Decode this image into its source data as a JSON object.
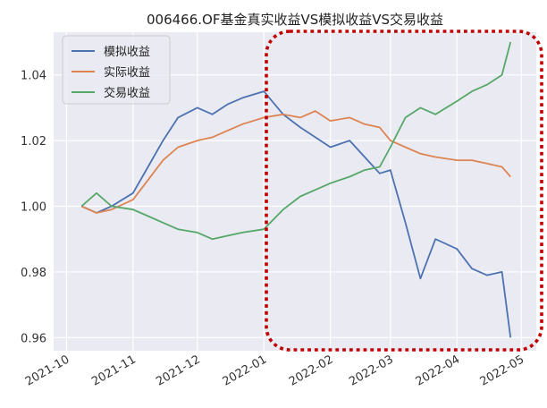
{
  "chart_data": {
    "type": "line",
    "title": "006466.OF基金真实收益VS模拟收益VS交易收益",
    "xlabel": "",
    "ylabel": "",
    "ylim": [
      0.956,
      1.053
    ],
    "y_ticks": [
      "0.96",
      "0.98",
      "1.00",
      "1.02",
      "1.04"
    ],
    "x_ticks": [
      "2021-10",
      "2021-11",
      "2021-12",
      "2022-01",
      "2022-02",
      "2022-03",
      "2022-04",
      "2022-05"
    ],
    "grid": true,
    "legend_position": "top-left",
    "annotation": "red dotted rounded rectangle highlighting 2022-01 to 2022-05",
    "x": [
      "2021-10-08",
      "2021-10-15",
      "2021-10-22",
      "2021-11-01",
      "2021-11-08",
      "2021-11-15",
      "2021-11-22",
      "2021-12-01",
      "2021-12-08",
      "2021-12-15",
      "2021-12-22",
      "2022-01-01",
      "2022-01-10",
      "2022-01-18",
      "2022-01-25",
      "2022-02-01",
      "2022-02-10",
      "2022-02-17",
      "2022-02-24",
      "2022-03-01",
      "2022-03-08",
      "2022-03-15",
      "2022-03-22",
      "2022-04-01",
      "2022-04-08",
      "2022-04-15",
      "2022-04-22",
      "2022-04-26"
    ],
    "series": [
      {
        "name": "模拟收益",
        "color": "#4c72b0",
        "values": [
          1.0,
          0.998,
          1.0,
          1.004,
          1.012,
          1.02,
          1.027,
          1.03,
          1.028,
          1.031,
          1.033,
          1.035,
          1.028,
          1.024,
          1.021,
          1.018,
          1.02,
          1.015,
          1.01,
          1.011,
          0.995,
          0.978,
          0.99,
          0.987,
          0.981,
          0.979,
          0.98,
          0.96
        ]
      },
      {
        "name": "实际收益",
        "color": "#dd8452",
        "values": [
          1.0,
          0.998,
          0.999,
          1.002,
          1.008,
          1.014,
          1.018,
          1.02,
          1.021,
          1.023,
          1.025,
          1.027,
          1.028,
          1.027,
          1.029,
          1.026,
          1.027,
          1.025,
          1.024,
          1.02,
          1.018,
          1.016,
          1.015,
          1.014,
          1.014,
          1.013,
          1.012,
          1.009
        ]
      },
      {
        "name": "交易收益",
        "color": "#55a868",
        "values": [
          1.0,
          1.004,
          1.0,
          0.999,
          0.997,
          0.995,
          0.993,
          0.992,
          0.99,
          0.991,
          0.992,
          0.993,
          0.999,
          1.003,
          1.005,
          1.007,
          1.009,
          1.011,
          1.012,
          1.018,
          1.027,
          1.03,
          1.028,
          1.032,
          1.035,
          1.037,
          1.04,
          1.05
        ]
      }
    ]
  }
}
